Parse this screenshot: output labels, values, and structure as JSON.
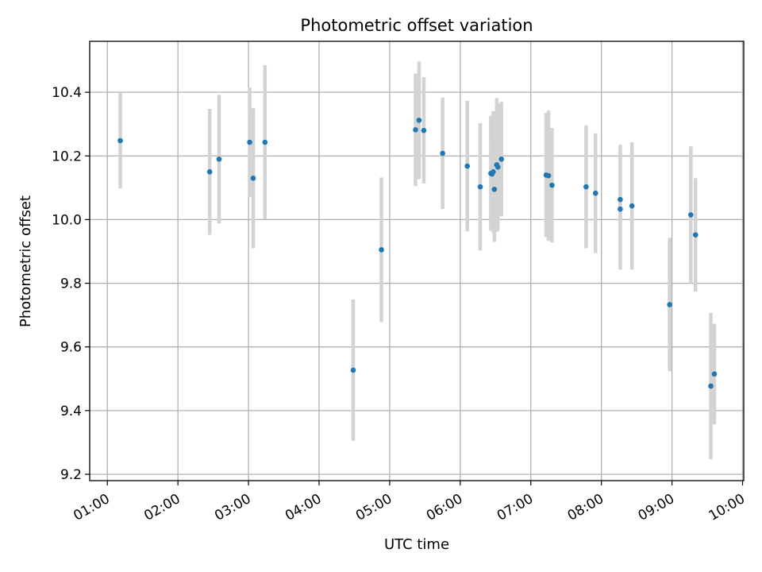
{
  "chart_data": {
    "type": "scatter",
    "title": "Photometric offset variation",
    "xlabel": "UTC time",
    "ylabel": "Photometric offset",
    "x_unit": "hours UTC",
    "xlim": [
      "00:45",
      "10:01"
    ],
    "ylim": [
      9.18,
      10.56
    ],
    "x_ticks": [
      "01:00",
      "02:00",
      "03:00",
      "04:00",
      "05:00",
      "06:00",
      "07:00",
      "08:00",
      "09:00",
      "10:00"
    ],
    "y_ticks": [
      "9.2",
      "9.4",
      "9.6",
      "9.8",
      "10.0",
      "10.2",
      "10.4"
    ],
    "grid": true,
    "colors": {
      "point": "#1f77b4",
      "errorbar": "#d3d3d3",
      "grid": "#b0b0b0"
    },
    "points": [
      {
        "time": "01:11",
        "y": 10.248,
        "err": 0.15
      },
      {
        "time": "02:27",
        "y": 10.15,
        "err": 0.198
      },
      {
        "time": "02:35",
        "y": 10.19,
        "err": 0.202
      },
      {
        "time": "03:01",
        "y": 10.243,
        "err": 0.172
      },
      {
        "time": "03:04",
        "y": 10.13,
        "err": 0.22
      },
      {
        "time": "03:14",
        "y": 10.243,
        "err": 0.242
      },
      {
        "time": "04:29",
        "y": 9.527,
        "err": 0.222
      },
      {
        "time": "04:53",
        "y": 9.905,
        "err": 0.227
      },
      {
        "time": "05:22",
        "y": 10.282,
        "err": 0.177
      },
      {
        "time": "05:25",
        "y": 10.312,
        "err": 0.185
      },
      {
        "time": "05:29",
        "y": 10.28,
        "err": 0.167
      },
      {
        "time": "05:45",
        "y": 10.208,
        "err": 0.175
      },
      {
        "time": "06:06",
        "y": 10.168,
        "err": 0.205
      },
      {
        "time": "06:17",
        "y": 10.103,
        "err": 0.2
      },
      {
        "time": "06:26",
        "y": 10.145,
        "err": 0.18
      },
      {
        "time": "06:27",
        "y": 10.143,
        "err": 0.175
      },
      {
        "time": "06:28",
        "y": 10.15,
        "err": 0.19
      },
      {
        "time": "06:29",
        "y": 10.095,
        "err": 0.165
      },
      {
        "time": "06:31",
        "y": 10.172,
        "err": 0.21
      },
      {
        "time": "06:32",
        "y": 10.165,
        "err": 0.2
      },
      {
        "time": "06:35",
        "y": 10.19,
        "err": 0.18
      },
      {
        "time": "07:13",
        "y": 10.14,
        "err": 0.195
      },
      {
        "time": "07:15",
        "y": 10.138,
        "err": 0.205
      },
      {
        "time": "07:18",
        "y": 10.108,
        "err": 0.18
      },
      {
        "time": "07:47",
        "y": 10.103,
        "err": 0.193
      },
      {
        "time": "07:55",
        "y": 10.083,
        "err": 0.188
      },
      {
        "time": "08:16",
        "y": 10.063,
        "err": 0.172
      },
      {
        "time": "08:16",
        "y": 10.033,
        "err": 0.19
      },
      {
        "time": "08:26",
        "y": 10.043,
        "err": 0.2
      },
      {
        "time": "08:58",
        "y": 9.733,
        "err": 0.21
      },
      {
        "time": "09:16",
        "y": 10.015,
        "err": 0.215
      },
      {
        "time": "09:20",
        "y": 9.952,
        "err": 0.178
      },
      {
        "time": "09:33",
        "y": 9.477,
        "err": 0.23
      },
      {
        "time": "09:36",
        "y": 9.515,
        "err": 0.158
      }
    ]
  }
}
